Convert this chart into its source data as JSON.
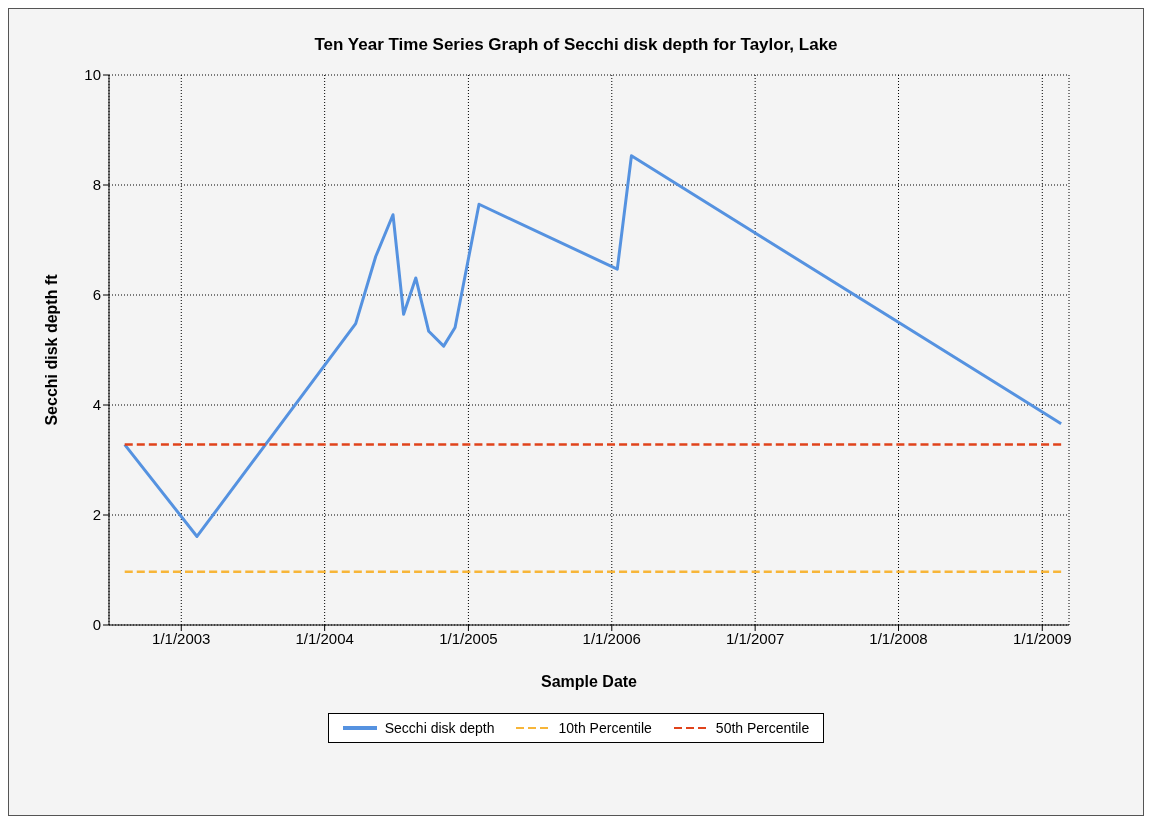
{
  "chart_data": {
    "type": "line",
    "title": "Ten Year Time Series Graph of Secchi disk depth for Taylor, Lake",
    "xlabel": "Sample Date",
    "ylabel": "Secchi disk depth ft",
    "series": [
      {
        "name": "Secchi disk depth",
        "color": "#5592e0",
        "line_style": "solid",
        "x": [
          "2002-08-10",
          "2003-02-10",
          "2004-03-20",
          "2004-05-10",
          "2004-06-23",
          "2004-07-20",
          "2004-08-20",
          "2004-09-22",
          "2004-10-30",
          "2004-11-28",
          "2005-01-28",
          "2006-01-15",
          "2006-02-20",
          "2009-02-18"
        ],
        "values": [
          3.28,
          1.61,
          5.48,
          6.7,
          7.46,
          5.65,
          6.31,
          5.34,
          5.07,
          5.41,
          7.65,
          6.47,
          8.53,
          3.66
        ]
      },
      {
        "name": "10th Percentile",
        "color": "#f7b538",
        "line_style": "dashed",
        "x": [
          "2002-08-10",
          "2009-02-18"
        ],
        "values": [
          0.97,
          0.97
        ]
      },
      {
        "name": "50th Percentile",
        "color": "#e0431b",
        "line_style": "dashed",
        "x": [
          "2002-08-10",
          "2009-02-18"
        ],
        "values": [
          3.28,
          3.28
        ]
      }
    ],
    "xlim": [
      "2002-07-01",
      "2009-03-10"
    ],
    "xticks": [
      {
        "value": "2003-01-01",
        "label": "1/1/2003"
      },
      {
        "value": "2004-01-01",
        "label": "1/1/2004"
      },
      {
        "value": "2005-01-01",
        "label": "1/1/2005"
      },
      {
        "value": "2006-01-01",
        "label": "1/1/2006"
      },
      {
        "value": "2007-01-01",
        "label": "1/1/2007"
      },
      {
        "value": "2008-01-01",
        "label": "1/1/2008"
      },
      {
        "value": "2009-01-01",
        "label": "1/1/2009"
      }
    ],
    "ylim": [
      0,
      10
    ],
    "yticks": [
      0,
      2,
      4,
      6,
      8,
      10
    ],
    "grid": true,
    "legend": "bottom",
    "marker": "none"
  }
}
